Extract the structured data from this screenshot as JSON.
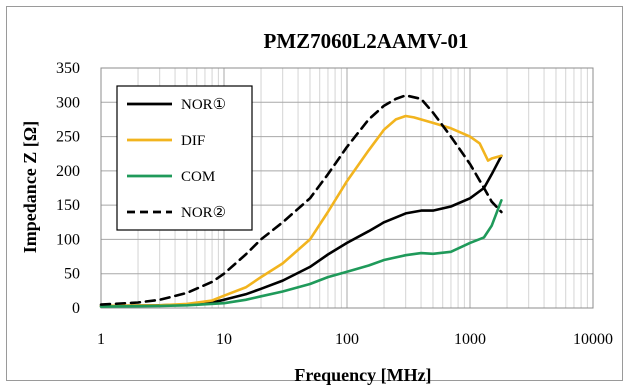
{
  "chart_data": {
    "type": "line",
    "title": "PMZ7060L2AAMV-01",
    "xlabel": "Frequency [MHz]",
    "ylabel": "Impedance Z [Ω]",
    "x_scale": "log",
    "xlim": [
      1,
      10000
    ],
    "ylim": [
      0,
      350
    ],
    "x_ticks": [
      "1",
      "10",
      "100",
      "1000",
      "10000"
    ],
    "y_ticks": [
      "0",
      "50",
      "100",
      "150",
      "200",
      "250",
      "300",
      "350"
    ],
    "grid": true,
    "legend_position": "top-left",
    "series": [
      {
        "name": "NOR①",
        "color": "#000000",
        "dash": "solid",
        "x": [
          1,
          3,
          5,
          8,
          10,
          15,
          20,
          30,
          50,
          70,
          100,
          150,
          200,
          300,
          400,
          500,
          700,
          1000,
          1300,
          1500,
          1800
        ],
        "y": [
          3,
          4,
          5,
          8,
          12,
          20,
          28,
          40,
          60,
          78,
          95,
          112,
          125,
          138,
          142,
          142,
          148,
          160,
          175,
          195,
          222
        ]
      },
      {
        "name": "DIF",
        "color": "#f2b41e",
        "dash": "solid",
        "x": [
          1,
          3,
          5,
          8,
          10,
          15,
          20,
          30,
          50,
          70,
          100,
          150,
          200,
          250,
          300,
          350,
          500,
          700,
          1000,
          1200,
          1400,
          1500,
          1800
        ],
        "y": [
          3,
          4,
          6,
          11,
          18,
          30,
          45,
          65,
          100,
          140,
          185,
          230,
          260,
          275,
          280,
          278,
          270,
          262,
          250,
          240,
          215,
          218,
          222
        ]
      },
      {
        "name": "COM",
        "color": "#1f9a5a",
        "dash": "solid",
        "x": [
          1,
          3,
          5,
          10,
          15,
          20,
          30,
          50,
          70,
          100,
          150,
          200,
          300,
          400,
          500,
          700,
          1000,
          1300,
          1500,
          1800
        ],
        "y": [
          2,
          3,
          4,
          7,
          12,
          17,
          24,
          35,
          45,
          53,
          62,
          70,
          77,
          80,
          79,
          82,
          95,
          103,
          120,
          157
        ]
      },
      {
        "name": "NOR②",
        "color": "#000000",
        "dash": "dashed",
        "x": [
          1,
          2,
          3,
          5,
          8,
          10,
          15,
          20,
          30,
          50,
          70,
          100,
          150,
          200,
          250,
          300,
          400,
          500,
          700,
          1000,
          1300,
          1500,
          1800
        ],
        "y": [
          5,
          8,
          12,
          22,
          38,
          50,
          78,
          100,
          125,
          160,
          195,
          235,
          275,
          295,
          305,
          310,
          305,
          285,
          250,
          210,
          175,
          155,
          140
        ]
      }
    ]
  }
}
